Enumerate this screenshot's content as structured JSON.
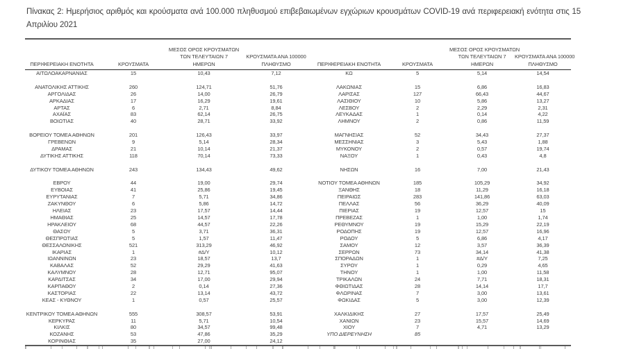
{
  "title": "Πίνακας 2: Ημερήσιος αριθμός και κρούσματα ανά 100.000 πληθυσμού επιβεβαιωμένων εγχώριων κρουσμάτων COVID-19 ανά περιφερειακή ενότητα στις 15 Απριλίου 2021",
  "colors": {
    "text": "#3d3d3d",
    "rule_heavy": "#595959",
    "rule_light": "#262626"
  },
  "table": {
    "headers": {
      "region": "ΠΕΡΙΦΕΡΕΙΑΚΗ ΕΝΟΤΗΤΑ",
      "cases": "ΚΡΟΥΣΜΑΤΑ",
      "avg7_line1": "ΜΕΣΟΣ ΟΡΟΣ ΚΡΟΥΣΜΑΤΩΝ",
      "avg7_line2": "ΤΩΝ ΤΕΛΕΥΤΑΙΩΝ 7",
      "avg7_line3": "ΗΜΕΡΩΝ",
      "per100k_line1": "ΚΡΟΥΣΜΑΤΑ ΑΝΑ 100000",
      "per100k_line2": "ΠΛΗΘΥΣΜΟ"
    },
    "left_rows": [
      {
        "region": "ΑΙΤΩΛΟΑΚΑΡΝΑΝΙΑΣ",
        "cases": "15",
        "avg7": "10,43",
        "per100k": "7,12"
      },
      null,
      {
        "region": "ΑΝΑΤΟΛΙΚΗΣ ΑΤΤΙΚΗΣ",
        "cases": "260",
        "avg7": "124,71",
        "per100k": "51,76"
      },
      {
        "region": "ΑΡΓΟΛΙΔΑΣ",
        "cases": "26",
        "avg7": "14,00",
        "per100k": "26,79"
      },
      {
        "region": "ΑΡΚΑΔΙΑΣ",
        "cases": "17",
        "avg7": "16,29",
        "per100k": "19,61"
      },
      {
        "region": "ΑΡΤΑΣ",
        "cases": "6",
        "avg7": "2,71",
        "per100k": "8,84"
      },
      {
        "region": "ΑΧΑΪΑΣ",
        "cases": "83",
        "avg7": "62,14",
        "per100k": "26,75"
      },
      {
        "region": "ΒΟΙΩΤΙΑΣ",
        "cases": "40",
        "avg7": "28,71",
        "per100k": "33,92"
      },
      null,
      {
        "region": "ΒΟΡΕΙΟΥ ΤΟΜΕΑ ΑΘΗΝΩΝ",
        "cases": "201",
        "avg7": "126,43",
        "per100k": "33,97"
      },
      {
        "region": "ΓΡΕΒΕΝΩΝ",
        "cases": "9",
        "avg7": "5,14",
        "per100k": "28,34"
      },
      {
        "region": "ΔΡΑΜΑΣ",
        "cases": "21",
        "avg7": "10,14",
        "per100k": "21,37"
      },
      {
        "region": "ΔΥΤΙΚΗΣ ΑΤΤΙΚΗΣ",
        "cases": "118",
        "avg7": "70,14",
        "per100k": "73,33"
      },
      null,
      {
        "region": "ΔΥΤΙΚΟΥ ΤΟΜΕΑ ΑΘΗΝΩΝ",
        "cases": "243",
        "avg7": "134,43",
        "per100k": "49,62"
      },
      null,
      {
        "region": "ΕΒΡΟΥ",
        "cases": "44",
        "avg7": "19,00",
        "per100k": "29,74"
      },
      {
        "region": "ΕΥΒΟΙΑΣ",
        "cases": "41",
        "avg7": "25,86",
        "per100k": "19,45"
      },
      {
        "region": "ΕΥΡΥΤΑΝΙΑΣ",
        "cases": "7",
        "avg7": "5,71",
        "per100k": "34,86"
      },
      {
        "region": "ΖΑΚΥΝΘΟΥ",
        "cases": "6",
        "avg7": "5,86",
        "per100k": "14,72"
      },
      {
        "region": "ΗΛΕΙΑΣ",
        "cases": "23",
        "avg7": "17,57",
        "per100k": "14,44"
      },
      {
        "region": "ΗΜΑΘΙΑΣ",
        "cases": "25",
        "avg7": "14,57",
        "per100k": "17,78"
      },
      {
        "region": "ΗΡΑΚΛΕΙΟΥ",
        "cases": "68",
        "avg7": "44,57",
        "per100k": "22,26"
      },
      {
        "region": "ΘΑΣΟΥ",
        "cases": "5",
        "avg7": "3,71",
        "per100k": "36,31"
      },
      {
        "region": "ΘΕΣΠΡΩΤΙΑΣ",
        "cases": "5",
        "avg7": "1,57",
        "per100k": "11,47"
      },
      {
        "region": "ΘΕΣΣΑΛΟΝΙΚΗΣ",
        "cases": "521",
        "avg7": "313,29",
        "per100k": "46,92"
      },
      {
        "region": "ΙΚΑΡΙΑΣ",
        "cases": "1",
        "avg7": "#Δ/Υ",
        "per100k": "10,12"
      },
      {
        "region": "ΙΩΑΝΝΙΝΩΝ",
        "cases": "23",
        "avg7": "18,57",
        "per100k": "13,7"
      },
      {
        "region": "ΚΑΒΑΛΑΣ",
        "cases": "52",
        "avg7": "29,29",
        "per100k": "41,63"
      },
      {
        "region": "ΚΑΛΥΜΝΟΥ",
        "cases": "28",
        "avg7": "12,71",
        "per100k": "95,07"
      },
      {
        "region": "ΚΑΡΔΙΤΣΑΣ",
        "cases": "34",
        "avg7": "17,00",
        "per100k": "29,94"
      },
      {
        "region": "ΚΑΡΠΑΘΟΥ",
        "cases": "2",
        "avg7": "0,14",
        "per100k": "27,36"
      },
      {
        "region": "ΚΑΣΤΟΡΙΑΣ",
        "cases": "22",
        "avg7": "13,14",
        "per100k": "43,72"
      },
      {
        "region": "ΚΕΑΣ - ΚΥΘΝΟΥ",
        "cases": "1",
        "avg7": "0,57",
        "per100k": "25,57"
      },
      null,
      {
        "region": "ΚΕΝΤΡΙΚΟΥ ΤΟΜΕΑ ΑΘΗΝΩΝ",
        "cases": "555",
        "avg7": "308,57",
        "per100k": "53,91"
      },
      {
        "region": "ΚΕΡΚΥΡΑΣ",
        "cases": "11",
        "avg7": "5,71",
        "per100k": "10,54"
      },
      {
        "region": "ΚΙΛΚΙΣ",
        "cases": "80",
        "avg7": "34,57",
        "per100k": "99,48"
      },
      {
        "region": "ΚΟΖΑΝΗΣ",
        "cases": "53",
        "avg7": "47,86",
        "per100k": "35,29"
      },
      {
        "region": "ΚΟΡΙΝΘΙΑΣ",
        "cases": "35",
        "avg7": "27,00",
        "per100k": "24,12"
      }
    ],
    "right_rows": [
      {
        "region": "ΚΩ",
        "cases": "5",
        "avg7": "5,14",
        "per100k": "14,54"
      },
      null,
      {
        "region": "ΛΑΚΩΝΙΑΣ",
        "cases": "15",
        "avg7": "6,86",
        "per100k": "16,83"
      },
      {
        "region": "ΛΑΡΙΣΑΣ",
        "cases": "127",
        "avg7": "66,43",
        "per100k": "44,67"
      },
      {
        "region": "ΛΑΣΙΘΙΟΥ",
        "cases": "10",
        "avg7": "5,86",
        "per100k": "13,27"
      },
      {
        "region": "ΛΕΣΒΟΥ",
        "cases": "2",
        "avg7": "2,29",
        "per100k": "2,31"
      },
      {
        "region": "ΛΕΥΚΑΔΑΣ",
        "cases": "1",
        "avg7": "0,14",
        "per100k": "4,22"
      },
      {
        "region": "ΛΗΜΝΟΥ",
        "cases": "2",
        "avg7": "0,86",
        "per100k": "11,59"
      },
      null,
      {
        "region": "ΜΑΓΝΗΣΙΑΣ",
        "cases": "52",
        "avg7": "34,43",
        "per100k": "27,37"
      },
      {
        "region": "ΜΕΣΣΗΝΙΑΣ",
        "cases": "3",
        "avg7": "5,43",
        "per100k": "1,88"
      },
      {
        "region": "ΜΥΚΟΝΟΥ",
        "cases": "2",
        "avg7": "0,57",
        "per100k": "19,74"
      },
      {
        "region": "ΝΑΞΟΥ",
        "cases": "1",
        "avg7": "0,43",
        "per100k": "4,8"
      },
      null,
      {
        "region": "ΝΗΣΩΝ",
        "cases": "16",
        "avg7": "7,00",
        "per100k": "21,43"
      },
      null,
      {
        "region": "ΝΟΤΙΟΥ ΤΟΜΕΑ ΑΘΗΝΩΝ",
        "cases": "185",
        "avg7": "105,29",
        "per100k": "34,92"
      },
      {
        "region": "ΞΑΝΘΗΣ",
        "cases": "18",
        "avg7": "11,29",
        "per100k": "16,18"
      },
      {
        "region": "ΠΕΙΡΑΙΩΣ",
        "cases": "283",
        "avg7": "141,86",
        "per100k": "63,03"
      },
      {
        "region": "ΠΕΛΛΑΣ",
        "cases": "56",
        "avg7": "36,29",
        "per100k": "40,09"
      },
      {
        "region": "ΠΙΕΡΙΑΣ",
        "cases": "19",
        "avg7": "12,57",
        "per100k": "15"
      },
      {
        "region": "ΠΡΕΒΕΖΑΣ",
        "cases": "1",
        "avg7": "1,00",
        "per100k": "1,74"
      },
      {
        "region": "ΡΕΘΥΜΝΟΥ",
        "cases": "19",
        "avg7": "15,29",
        "per100k": "22,19"
      },
      {
        "region": "ΡΟΔΟΠΗΣ",
        "cases": "19",
        "avg7": "12,57",
        "per100k": "16,96"
      },
      {
        "region": "ΡΟΔΟΥ",
        "cases": "5",
        "avg7": "6,86",
        "per100k": "4,17"
      },
      {
        "region": "ΣΑΜΟΥ",
        "cases": "12",
        "avg7": "3,57",
        "per100k": "36,39"
      },
      {
        "region": "ΣΕΡΡΩΝ",
        "cases": "73",
        "avg7": "34,14",
        "per100k": "41,38"
      },
      {
        "region": "ΣΠΟΡΑΔΩΝ",
        "cases": "1",
        "avg7": "#Δ/Υ",
        "per100k": "7,25"
      },
      {
        "region": "ΣΥΡΟΥ",
        "cases": "1",
        "avg7": "0,29",
        "per100k": "4,65"
      },
      {
        "region": "ΤΗΝΟΥ",
        "cases": "1",
        "avg7": "1,00",
        "per100k": "11,58"
      },
      {
        "region": "ΤΡΙΚΑΛΩΝ",
        "cases": "24",
        "avg7": "7,71",
        "per100k": "18,31"
      },
      {
        "region": "ΦΘΙΩΤΙΔΑΣ",
        "cases": "28",
        "avg7": "14,14",
        "per100k": "17,7"
      },
      {
        "region": "ΦΛΩΡΙΝΑΣ",
        "cases": "7",
        "avg7": "3,00",
        "per100k": "13,61"
      },
      {
        "region": "ΦΩΚΙΔΑΣ",
        "cases": "5",
        "avg7": "3,00",
        "per100k": "12,39"
      },
      null,
      {
        "region": "ΧΑΛΚΙΔΙΚΗΣ",
        "cases": "27",
        "avg7": "17,57",
        "per100k": "25,49"
      },
      {
        "region": "ΧΑΝΙΩΝ",
        "cases": "23",
        "avg7": "15,57",
        "per100k": "14,69"
      },
      {
        "region": "ΧΙΟΥ",
        "cases": "7",
        "avg7": "4,71",
        "per100k": "13,29"
      },
      {
        "region": "ΥΠΟ ΔΙΕΡΕΥΝΗΣΗ",
        "cases": "85",
        "avg7": "",
        "per100k": "",
        "italic": true
      },
      null
    ]
  }
}
